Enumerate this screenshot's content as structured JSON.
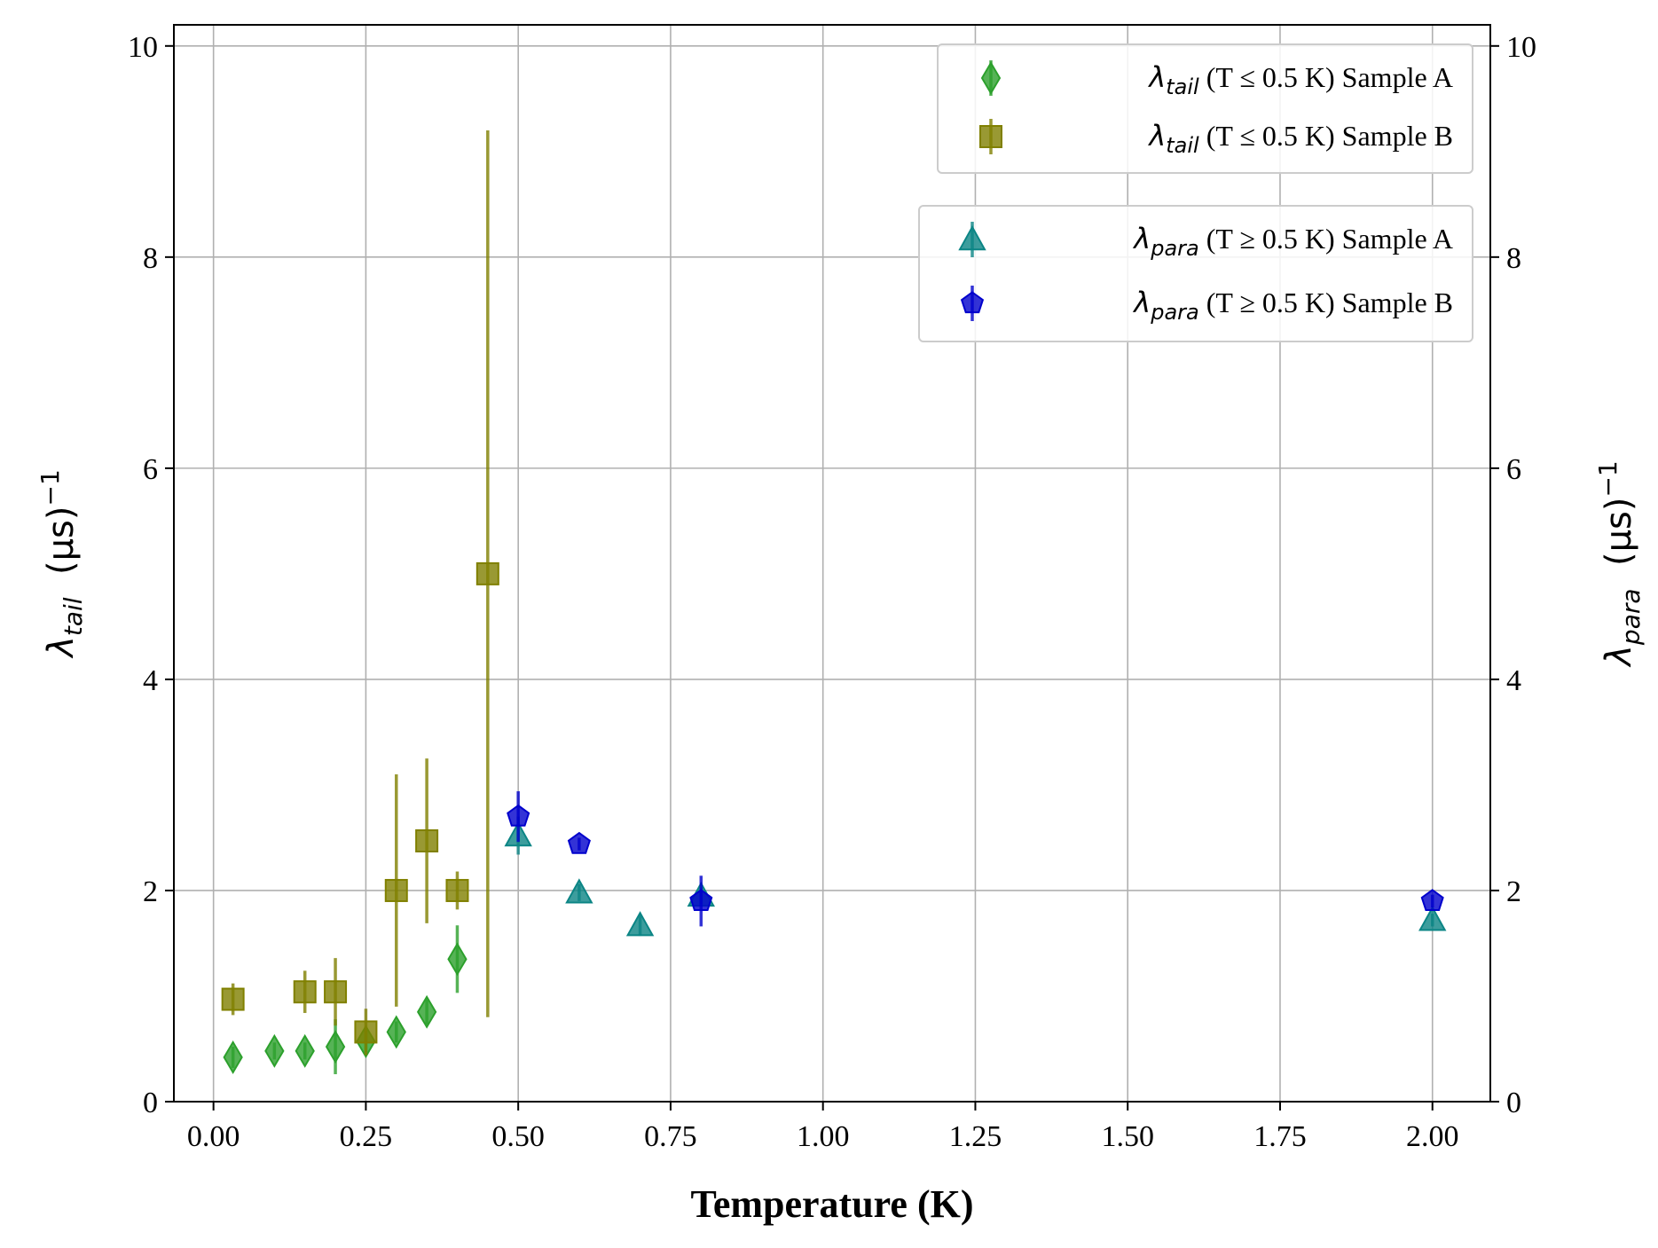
{
  "chart_data": {
    "type": "scatter",
    "xlabel": "Temperature (K)",
    "ylabel_left": {
      "main": "λ",
      "sub": "tail",
      "unit": "  (μs)",
      "sup": "−1"
    },
    "ylabel_right": {
      "main": "λ",
      "sub": "para",
      "unit": "  (μs)",
      "sup": "−1"
    },
    "xlim": [
      -0.065,
      2.095
    ],
    "ylim": [
      0,
      10.2
    ],
    "xticks": [
      "0.00",
      "0.25",
      "0.50",
      "0.75",
      "1.00",
      "1.25",
      "1.50",
      "1.75",
      "2.00"
    ],
    "yticks": [
      "0",
      "2",
      "4",
      "6",
      "8",
      "10"
    ],
    "grid": true,
    "legends": [
      {
        "placement": "top-right",
        "entries": [
          0,
          1
        ]
      },
      {
        "placement": "upper-right",
        "entries": [
          2,
          3
        ]
      }
    ],
    "series": [
      {
        "name": "λtail (T ≤ 0.5 K) Sample A",
        "legend_parts": {
          "sym": "λ",
          "sub": "tail",
          "rest": " (T ≤ 0.5 K) Sample A"
        },
        "marker": "diamond",
        "color": "#2ca02c",
        "x": [
          0.032,
          0.1,
          0.15,
          0.2,
          0.25,
          0.3,
          0.35,
          0.4
        ],
        "y": [
          0.42,
          0.48,
          0.48,
          0.52,
          0.57,
          0.66,
          0.85,
          1.35
        ],
        "yerr": [
          0.1,
          0.08,
          0.08,
          0.26,
          0.1,
          0.1,
          0.12,
          0.32
        ]
      },
      {
        "name": "λtail (T ≤ 0.5 K) Sample B",
        "legend_parts": {
          "sym": "λ",
          "sub": "tail",
          "rest": " (T ≤ 0.5 K) Sample B"
        },
        "marker": "square",
        "color": "#808000",
        "x": [
          0.032,
          0.15,
          0.2,
          0.25,
          0.3,
          0.35,
          0.4,
          0.45
        ],
        "y": [
          0.97,
          1.04,
          1.04,
          0.66,
          2.0,
          2.47,
          2.0,
          5.0
        ],
        "yerr": [
          0.15,
          0.2,
          0.32,
          0.22,
          1.1,
          0.78,
          0.18,
          4.2
        ]
      },
      {
        "name": "λpara (T ≥ 0.5 K) Sample A",
        "legend_parts": {
          "sym": "λ",
          "sub": "para",
          "rest": " (T ≥ 0.5 K) Sample A"
        },
        "marker": "triangle",
        "color": "#0b8585",
        "x": [
          0.5,
          0.6,
          0.7,
          0.8,
          2.0
        ],
        "y": [
          2.52,
          1.98,
          1.67,
          1.95,
          1.72
        ],
        "yerr": [
          0.18,
          0.08,
          0.1,
          0.08,
          0.06
        ]
      },
      {
        "name": "λpara (T ≥ 0.5 K) Sample B",
        "legend_parts": {
          "sym": "λ",
          "sub": "para",
          "rest": " (T ≥ 0.5 K) Sample B"
        },
        "marker": "pentagon",
        "color": "#0000cc",
        "x": [
          0.5,
          0.6,
          0.8,
          2.0
        ],
        "y": [
          2.7,
          2.44,
          1.9,
          1.9
        ],
        "yerr": [
          0.24,
          0.06,
          0.24,
          0.06
        ]
      }
    ]
  }
}
